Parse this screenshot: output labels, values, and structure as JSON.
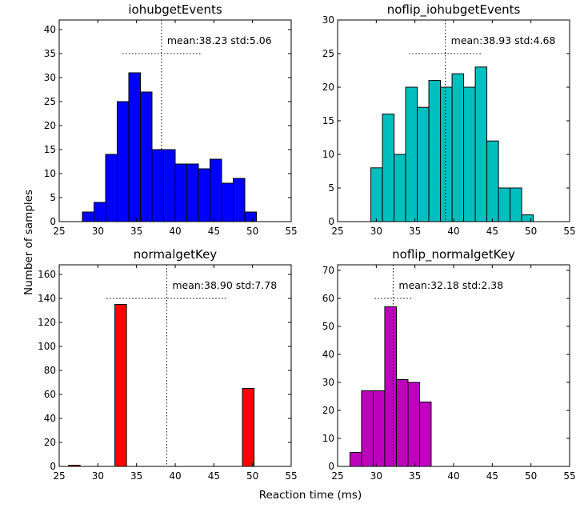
{
  "figure": {
    "xlabel": "Reaction time (ms)",
    "ylabel": "Number of samples"
  },
  "chart_data": [
    {
      "type": "bar",
      "title": "iohubgetEvents",
      "color": "#0000ff",
      "xlim": [
        25,
        55
      ],
      "ylim": [
        0,
        42
      ],
      "xticks": [
        25,
        30,
        35,
        40,
        45,
        50,
        55
      ],
      "yticks": [
        0,
        5,
        10,
        15,
        20,
        25,
        30,
        35,
        40
      ],
      "bin_edges": [
        28,
        29.5,
        31,
        32.5,
        34,
        35.5,
        37,
        38.5,
        40,
        41.5,
        43,
        44.5,
        46,
        47.5,
        49,
        50.5
      ],
      "counts": [
        2,
        4,
        14,
        25,
        31,
        27,
        15,
        15,
        12,
        12,
        11,
        13,
        8,
        9,
        2
      ],
      "mean": 38.23,
      "std": 5.06,
      "annotation": "mean:38.23 std:5.06",
      "std_line_y": 35
    },
    {
      "type": "bar",
      "title": "noflip_iohubgetEvents",
      "color": "#00bfbf",
      "xlim": [
        25,
        55
      ],
      "ylim": [
        0,
        30
      ],
      "xticks": [
        25,
        30,
        35,
        40,
        45,
        50,
        55
      ],
      "yticks": [
        0,
        5,
        10,
        15,
        20,
        25,
        30
      ],
      "bin_edges": [
        29.3,
        30.8,
        32.3,
        33.8,
        35.3,
        36.8,
        38.3,
        39.8,
        41.3,
        42.8,
        44.3,
        45.8,
        47.3,
        48.8,
        50.3
      ],
      "counts": [
        8,
        16,
        10,
        20,
        17,
        21,
        20,
        22,
        20,
        23,
        12,
        5,
        5,
        1
      ],
      "mean": 38.93,
      "std": 4.68,
      "annotation": "mean:38.93 std:4.68",
      "std_line_y": 25
    },
    {
      "type": "bar",
      "title": "normalgetKey",
      "color": "#ff0000",
      "xlim": [
        25,
        55
      ],
      "ylim": [
        0,
        168
      ],
      "xticks": [
        25,
        30,
        35,
        40,
        45,
        50,
        55
      ],
      "yticks": [
        0,
        20,
        40,
        60,
        80,
        100,
        120,
        140,
        160
      ],
      "bin_edges": [
        26.2,
        27.7,
        29.2,
        30.7,
        32.2,
        33.7,
        35.2,
        36.7,
        38.2,
        39.7,
        41.2,
        42.7,
        44.2,
        45.7,
        47.2,
        48.7,
        50.2
      ],
      "counts": [
        1,
        0,
        0,
        0,
        135,
        0,
        0,
        0,
        0,
        0,
        0,
        0,
        0,
        0,
        0,
        65
      ],
      "mean": 38.9,
      "std": 7.78,
      "annotation": "mean:38.90 std:7.78",
      "std_line_y": 140
    },
    {
      "type": "bar",
      "title": "noflip_normalgetKey",
      "color": "#bf00bf",
      "xlim": [
        25,
        55
      ],
      "ylim": [
        0,
        72
      ],
      "xticks": [
        25,
        30,
        35,
        40,
        45,
        50,
        55
      ],
      "yticks": [
        0,
        10,
        20,
        30,
        40,
        50,
        60,
        70
      ],
      "bin_edges": [
        26.6,
        28.1,
        29.6,
        31.1,
        32.6,
        34.1,
        35.6,
        37.1
      ],
      "counts": [
        5,
        27,
        27,
        57,
        31,
        30,
        23
      ],
      "mean": 32.18,
      "std": 2.38,
      "annotation": "mean:32.18 std:2.38",
      "std_line_y": 60
    }
  ]
}
